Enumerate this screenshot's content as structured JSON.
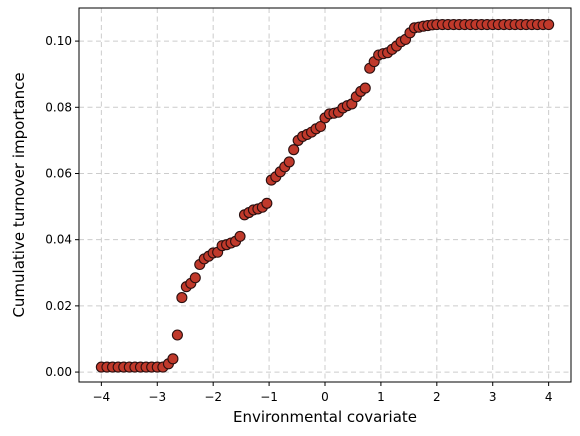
{
  "chart_data": {
    "type": "scatter",
    "xlabel": "Environmental covariate",
    "ylabel": "Cumulative turnover importance",
    "xlim": [
      -4.4,
      4.4
    ],
    "ylim": [
      -0.003,
      0.11
    ],
    "xticks": [
      -4,
      -3,
      -2,
      -1,
      0,
      1,
      2,
      3,
      4
    ],
    "xtick_labels": [
      "−4",
      "−3",
      "−2",
      "−1",
      "0",
      "1",
      "2",
      "3",
      "4"
    ],
    "yticks": [
      0.0,
      0.02,
      0.04,
      0.06,
      0.08,
      0.1
    ],
    "ytick_labels": [
      "0.00",
      "0.02",
      "0.04",
      "0.06",
      "0.08",
      "0.10"
    ],
    "grid": true,
    "marker_color": "#c0392b",
    "marker_edge": "#2b0f0f",
    "series": [
      {
        "points": [
          [
            -4.0,
            0.0015
          ],
          [
            -3.9,
            0.0015
          ],
          [
            -3.8,
            0.0015
          ],
          [
            -3.7,
            0.0015
          ],
          [
            -3.6,
            0.0015
          ],
          [
            -3.5,
            0.0015
          ],
          [
            -3.4,
            0.0015
          ],
          [
            -3.3,
            0.0015
          ],
          [
            -3.2,
            0.0015
          ],
          [
            -3.1,
            0.0015
          ],
          [
            -3.0,
            0.0015
          ],
          [
            -2.9,
            0.0015
          ],
          [
            -2.8,
            0.0025
          ],
          [
            -2.72,
            0.004
          ],
          [
            -2.64,
            0.0112
          ],
          [
            -2.56,
            0.0225
          ],
          [
            -2.48,
            0.0258
          ],
          [
            -2.4,
            0.0268
          ],
          [
            -2.32,
            0.0285
          ],
          [
            -2.24,
            0.0325
          ],
          [
            -2.16,
            0.0342
          ],
          [
            -2.08,
            0.035
          ],
          [
            -2.0,
            0.036
          ],
          [
            -1.92,
            0.0362
          ],
          [
            -1.84,
            0.0382
          ],
          [
            -1.76,
            0.0385
          ],
          [
            -1.68,
            0.039
          ],
          [
            -1.6,
            0.0395
          ],
          [
            -1.52,
            0.041
          ],
          [
            -1.44,
            0.0475
          ],
          [
            -1.36,
            0.0482
          ],
          [
            -1.28,
            0.049
          ],
          [
            -1.2,
            0.0493
          ],
          [
            -1.12,
            0.0498
          ],
          [
            -1.04,
            0.051
          ],
          [
            -0.96,
            0.058
          ],
          [
            -0.88,
            0.059
          ],
          [
            -0.8,
            0.0605
          ],
          [
            -0.72,
            0.062
          ],
          [
            -0.64,
            0.0635
          ],
          [
            -0.56,
            0.0672
          ],
          [
            -0.48,
            0.07
          ],
          [
            -0.4,
            0.0712
          ],
          [
            -0.32,
            0.0718
          ],
          [
            -0.24,
            0.0725
          ],
          [
            -0.16,
            0.0735
          ],
          [
            -0.08,
            0.0742
          ],
          [
            0.0,
            0.0768
          ],
          [
            0.08,
            0.078
          ],
          [
            0.16,
            0.0782
          ],
          [
            0.24,
            0.0785
          ],
          [
            0.32,
            0.0798
          ],
          [
            0.4,
            0.0805
          ],
          [
            0.48,
            0.081
          ],
          [
            0.56,
            0.0832
          ],
          [
            0.64,
            0.0848
          ],
          [
            0.72,
            0.0858
          ],
          [
            0.8,
            0.0918
          ],
          [
            0.88,
            0.0938
          ],
          [
            0.96,
            0.0958
          ],
          [
            1.04,
            0.0962
          ],
          [
            1.12,
            0.0965
          ],
          [
            1.2,
            0.0975
          ],
          [
            1.28,
            0.0985
          ],
          [
            1.36,
            0.0998
          ],
          [
            1.44,
            0.1005
          ],
          [
            1.52,
            0.1025
          ],
          [
            1.6,
            0.104
          ],
          [
            1.68,
            0.1042
          ],
          [
            1.76,
            0.1045
          ],
          [
            1.84,
            0.1047
          ],
          [
            1.92,
            0.1049
          ],
          [
            2.0,
            0.105
          ],
          [
            2.1,
            0.105
          ],
          [
            2.2,
            0.105
          ],
          [
            2.3,
            0.105
          ],
          [
            2.4,
            0.105
          ],
          [
            2.5,
            0.105
          ],
          [
            2.6,
            0.105
          ],
          [
            2.7,
            0.105
          ],
          [
            2.8,
            0.105
          ],
          [
            2.9,
            0.105
          ],
          [
            3.0,
            0.105
          ],
          [
            3.1,
            0.105
          ],
          [
            3.2,
            0.105
          ],
          [
            3.3,
            0.105
          ],
          [
            3.4,
            0.105
          ],
          [
            3.5,
            0.105
          ],
          [
            3.6,
            0.105
          ],
          [
            3.7,
            0.105
          ],
          [
            3.8,
            0.105
          ],
          [
            3.9,
            0.105
          ],
          [
            4.0,
            0.105
          ]
        ]
      }
    ]
  }
}
